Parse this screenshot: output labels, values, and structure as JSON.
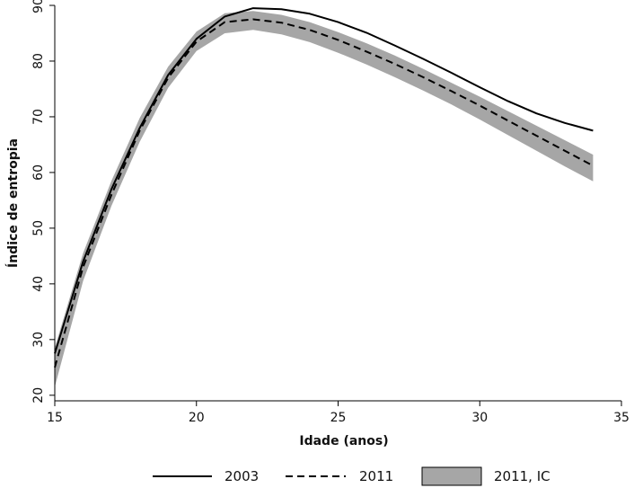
{
  "chart_data": {
    "type": "line",
    "title": "",
    "xlabel": "Idade (anos)",
    "ylabel": "Índice de entropia",
    "xlim": [
      15,
      35
    ],
    "ylim": [
      19,
      90
    ],
    "xticks": [
      15,
      20,
      25,
      30,
      35
    ],
    "yticks": [
      20,
      30,
      40,
      50,
      60,
      70,
      80,
      90
    ],
    "grid": false,
    "legend_position": "bottom",
    "x": [
      15,
      16,
      17,
      18,
      19,
      20,
      21,
      22,
      23,
      24,
      25,
      26,
      27,
      28,
      29,
      30,
      31,
      32,
      33,
      34
    ],
    "series": [
      {
        "name": "2003",
        "style": "solid",
        "color": "#000000",
        "values": [
          27.5,
          44,
          57,
          68,
          77.5,
          84,
          88,
          89.5,
          89.3,
          88.5,
          87,
          85.1,
          82.8,
          80.4,
          77.9,
          75.3,
          72.8,
          70.6,
          68.9,
          67.5
        ]
      },
      {
        "name": "2011",
        "style": "dashed",
        "color": "#000000",
        "values": [
          25,
          43,
          56,
          67.5,
          77,
          83.5,
          87,
          87.5,
          86.9,
          85.6,
          83.8,
          81.7,
          79.5,
          77.1,
          74.6,
          72,
          69.3,
          66.6,
          63.9,
          61.2
        ]
      }
    ],
    "band": {
      "name": "2011, IC",
      "color": "#a6a6a6",
      "lower": [
        21.5,
        40.5,
        54,
        65.5,
        75.2,
        81.8,
        85,
        85.6,
        84.8,
        83.4,
        81.5,
        79.4,
        77.1,
        74.7,
        72.2,
        69.5,
        66.7,
        63.9,
        61.1,
        58.4
      ],
      "upper": [
        28.5,
        45.5,
        58.5,
        69.8,
        79,
        85.3,
        88.6,
        89,
        88.3,
        87,
        85.2,
        83.2,
        81,
        78.6,
        76.1,
        73.6,
        71,
        68.4,
        65.8,
        63.2
      ]
    }
  }
}
